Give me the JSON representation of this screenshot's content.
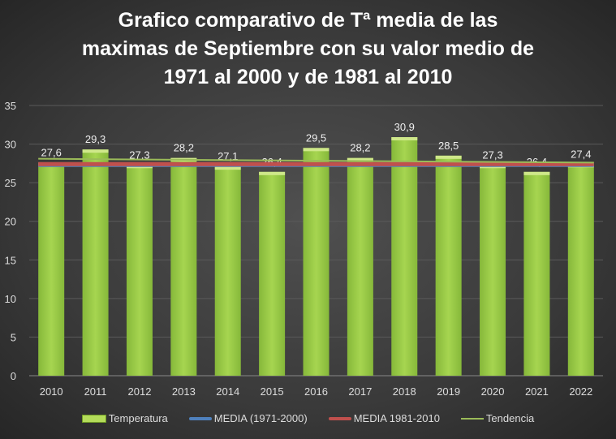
{
  "chart_data": {
    "type": "bar",
    "title": "Grafico comparativo de Tª media de las maximas de Septiembre con su valor medio de 1971 al 2000 y de 1981 al 2010",
    "title_lines": [
      "Grafico comparativo de Tª media de las",
      "maximas de Septiembre con su valor medio de",
      "1971 al 2000 y de 1981 al 2010"
    ],
    "categories": [
      "2010",
      "2011",
      "2012",
      "2013",
      "2014",
      "2015",
      "2016",
      "2017",
      "2018",
      "2019",
      "2020",
      "2021",
      "2022"
    ],
    "ylim": [
      0,
      35
    ],
    "yticks": [
      0,
      5,
      10,
      15,
      20,
      25,
      30,
      35
    ],
    "series": [
      {
        "name": "Temperatura",
        "type": "bar",
        "color": "#92c83e",
        "values": [
          27.6,
          29.3,
          27.3,
          28.2,
          27.1,
          26.4,
          29.5,
          28.2,
          30.9,
          28.5,
          27.3,
          26.4,
          27.4
        ],
        "labels": [
          "27,6",
          "29,3",
          "27,3",
          "28,2",
          "27,1",
          "26,4",
          "29,5",
          "28,2",
          "30,9",
          "28,5",
          "27,3",
          "26,4",
          "27,4"
        ]
      },
      {
        "name": "MEDIA (1971-2000)",
        "type": "line",
        "color": "#4f81bd",
        "value": 27.3
      },
      {
        "name": "MEDIA 1981-2010",
        "type": "line",
        "color": "#c0504d",
        "value": 27.4
      },
      {
        "name": "Tendencia",
        "type": "trend",
        "color": "#9bbb59",
        "start": 28.1,
        "end": 27.6
      }
    ],
    "legend_position": "bottom",
    "grid": true
  }
}
